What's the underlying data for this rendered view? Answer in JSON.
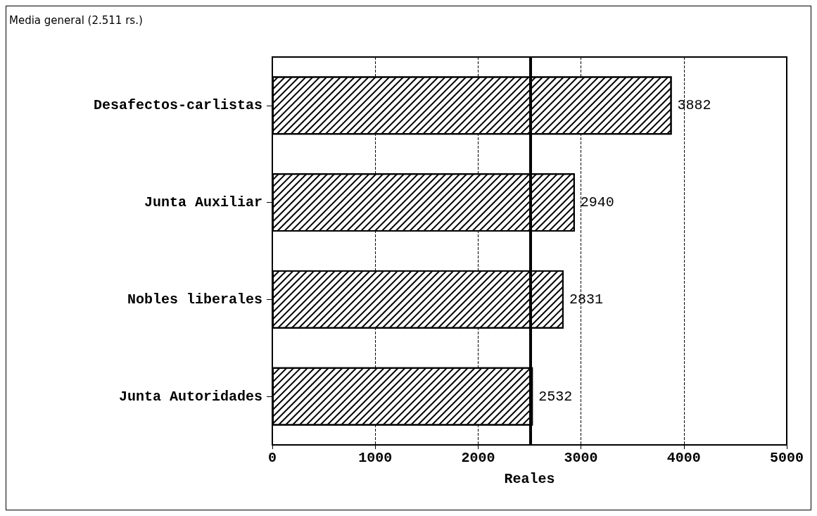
{
  "chart_data": {
    "type": "bar",
    "orientation": "horizontal",
    "xlabel": "Reales",
    "categories": [
      "Desafectos-carlistas",
      "Junta Auxiliar",
      "Nobles liberales",
      "Junta Autoridades"
    ],
    "values": [
      3882,
      2940,
      2831,
      2532
    ],
    "color": "#ffffff",
    "data_labels": true,
    "xlim": [
      0,
      5000
    ],
    "xticks": [
      0,
      1000,
      2000,
      3000,
      4000,
      5000
    ],
    "grid": "x",
    "ref_lines": [
      {
        "axis": "x",
        "value": 2511,
        "label": "Media general (2.511 rs.)",
        "color": "#000000",
        "line_style": "solid"
      }
    ]
  }
}
